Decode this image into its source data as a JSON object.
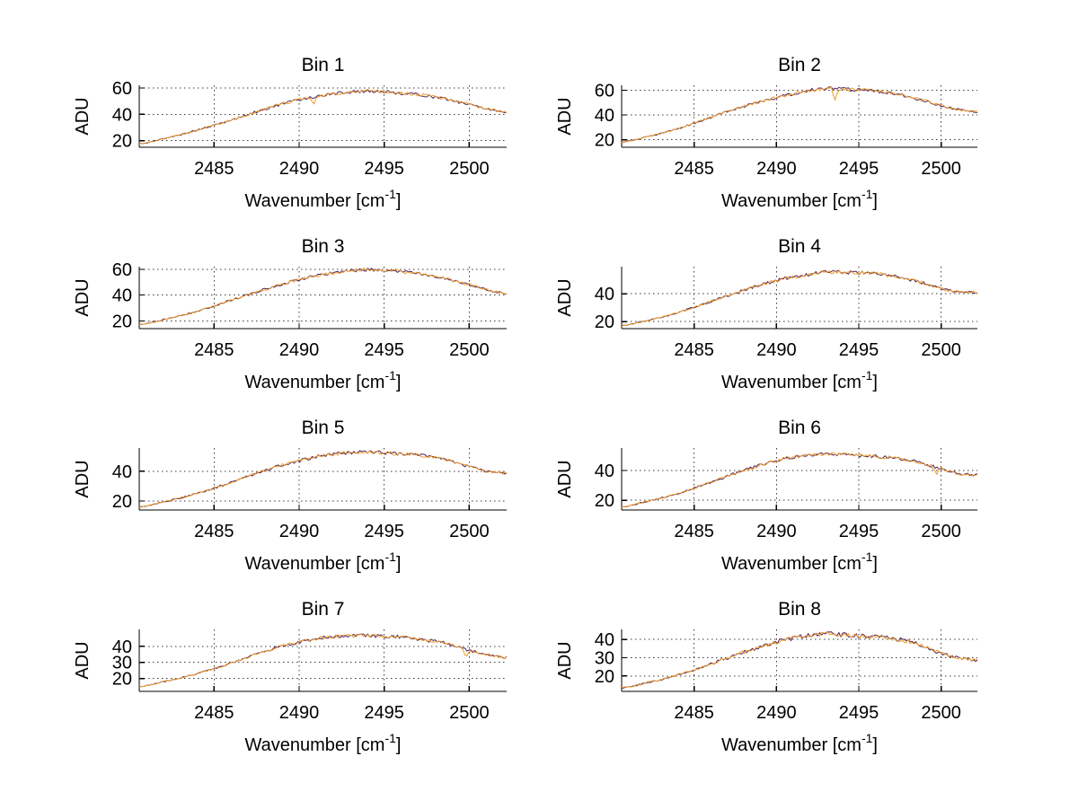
{
  "figure": {
    "background": "#ffffff",
    "ylabel": "ADU",
    "xlabel": {
      "pre": "Wavenumber [cm",
      "sup": "-1",
      "post": "]"
    },
    "x_ticks": [
      2485,
      2490,
      2495,
      2500
    ],
    "xlim": [
      2480.6,
      2502.2
    ],
    "grid": "on",
    "box": "off",
    "colors": {
      "axis": "#000000",
      "grid": "#3a3a3a",
      "trace_dark": "#4b2160",
      "trace_orange": "#ee9b28",
      "text": "#000000"
    }
  },
  "chart_data": [
    {
      "type": "line",
      "title": "Bin 1",
      "xlabel": "Wavenumber [cm-1]",
      "ylabel": "ADU",
      "xlim": [
        2480.6,
        2502.2
      ],
      "ylim": [
        15,
        62
      ],
      "y_ticks": [
        20,
        40,
        60
      ],
      "x": [
        2480.6,
        2482,
        2484,
        2486,
        2488,
        2490,
        2491.5,
        2493,
        2494.5,
        2496,
        2497,
        2498,
        2499,
        2500,
        2501,
        2502.2
      ],
      "values": [
        17.5,
        21.5,
        28,
        35.5,
        44,
        51,
        54.5,
        57,
        57.5,
        56,
        55,
        53,
        50.5,
        47.5,
        44.5,
        41.5
      ],
      "noise": 1.3,
      "spikes": [
        {
          "x": 2490.9,
          "dy": -5
        }
      ],
      "series": [
        {
          "name": "trace-dark",
          "color": "#4b2160"
        },
        {
          "name": "trace-orange",
          "color": "#ee9b28"
        }
      ]
    },
    {
      "type": "line",
      "title": "Bin 2",
      "xlabel": "Wavenumber [cm-1]",
      "ylabel": "ADU",
      "xlim": [
        2480.6,
        2502.2
      ],
      "ylim": [
        14,
        64
      ],
      "y_ticks": [
        20,
        40,
        60
      ],
      "x": [
        2480.6,
        2482,
        2484,
        2486,
        2488,
        2490,
        2491.5,
        2493,
        2494.5,
        2496,
        2497,
        2498,
        2499,
        2500,
        2501,
        2502.2
      ],
      "values": [
        18,
        22,
        29,
        38,
        47,
        54,
        58.5,
        61.5,
        60.5,
        59.5,
        57.5,
        55,
        51.5,
        47.5,
        44.5,
        42.5
      ],
      "noise": 1.4,
      "spikes": [
        {
          "x": 2493.6,
          "dy": -10
        }
      ],
      "series": [
        {
          "name": "trace-dark",
          "color": "#4b2160"
        },
        {
          "name": "trace-orange",
          "color": "#ee9b28"
        }
      ]
    },
    {
      "type": "line",
      "title": "Bin 3",
      "xlabel": "Wavenumber [cm-1]",
      "ylabel": "ADU",
      "xlim": [
        2480.6,
        2502.2
      ],
      "ylim": [
        14,
        62
      ],
      "y_ticks": [
        20,
        40,
        60
      ],
      "x": [
        2480.6,
        2482,
        2484,
        2486,
        2488,
        2490,
        2491.5,
        2493,
        2494.5,
        2496,
        2497,
        2498,
        2499,
        2500,
        2501,
        2502.2
      ],
      "values": [
        17,
        21,
        27.5,
        36,
        44.5,
        52,
        56,
        59,
        59.5,
        58,
        56.5,
        54.5,
        51.5,
        48,
        44.5,
        41
      ],
      "noise": 1.3,
      "spikes": [],
      "series": [
        {
          "name": "trace-dark",
          "color": "#4b2160"
        },
        {
          "name": "trace-orange",
          "color": "#ee9b28"
        }
      ]
    },
    {
      "type": "line",
      "title": "Bin 4",
      "xlabel": "Wavenumber [cm-1]",
      "ylabel": "ADU",
      "xlim": [
        2480.6,
        2502.2
      ],
      "ylim": [
        15,
        59.5
      ],
      "y_ticks": [
        20,
        40
      ],
      "x": [
        2480.6,
        2482,
        2484,
        2486,
        2488,
        2490,
        2491.5,
        2493,
        2494.5,
        2496,
        2497,
        2498,
        2499,
        2500,
        2501,
        2502.2
      ],
      "values": [
        17,
        20.5,
        26.5,
        34.5,
        42.5,
        49.5,
        53,
        55.5,
        55.5,
        54.5,
        53,
        50.5,
        47.5,
        44,
        41.5,
        41
      ],
      "noise": 1.3,
      "spikes": [],
      "series": [
        {
          "name": "trace-dark",
          "color": "#4b2160"
        },
        {
          "name": "trace-orange",
          "color": "#ee9b28"
        }
      ]
    },
    {
      "type": "line",
      "title": "Bin 5",
      "xlabel": "Wavenumber [cm-1]",
      "ylabel": "ADU",
      "xlim": [
        2480.6,
        2502.2
      ],
      "ylim": [
        14,
        55.5
      ],
      "y_ticks": [
        20,
        40
      ],
      "x": [
        2480.6,
        2482,
        2484,
        2486,
        2488,
        2490,
        2491.5,
        2493,
        2494.5,
        2496,
        2497,
        2498,
        2499,
        2500,
        2501,
        2502.2
      ],
      "values": [
        16,
        19.5,
        25,
        32.5,
        40.5,
        47,
        50.5,
        52.5,
        52.5,
        51.5,
        51,
        49,
        46.5,
        43,
        40,
        38.5
      ],
      "noise": 1.2,
      "spikes": [],
      "series": [
        {
          "name": "trace-dark",
          "color": "#4b2160"
        },
        {
          "name": "trace-orange",
          "color": "#ee9b28"
        }
      ]
    },
    {
      "type": "line",
      "title": "Bin 6",
      "xlabel": "Wavenumber [cm-1]",
      "ylabel": "ADU",
      "xlim": [
        2480.6,
        2502.2
      ],
      "ylim": [
        13.5,
        55
      ],
      "y_ticks": [
        20,
        40
      ],
      "x": [
        2480.6,
        2482,
        2484,
        2486,
        2488,
        2490,
        2491.5,
        2493,
        2494.5,
        2496,
        2497,
        2498,
        2499,
        2500,
        2501,
        2502.2
      ],
      "values": [
        15.5,
        19,
        24.5,
        32,
        40,
        46.5,
        49.5,
        51,
        50.5,
        49.5,
        48.5,
        47,
        44.5,
        41,
        38,
        37
      ],
      "noise": 1.2,
      "spikes": [
        {
          "x": 2499.7,
          "dy": -3.5
        }
      ],
      "series": [
        {
          "name": "trace-dark",
          "color": "#4b2160"
        },
        {
          "name": "trace-orange",
          "color": "#ee9b28"
        }
      ]
    },
    {
      "type": "line",
      "title": "Bin 7",
      "xlabel": "Wavenumber [cm-1]",
      "ylabel": "ADU",
      "xlim": [
        2480.6,
        2502.2
      ],
      "ylim": [
        12,
        50.5
      ],
      "y_ticks": [
        20,
        30,
        40
      ],
      "x": [
        2480.6,
        2482,
        2484,
        2486,
        2488,
        2490,
        2491.5,
        2493,
        2494.5,
        2496,
        2497,
        2498,
        2499,
        2500,
        2501,
        2502.2
      ],
      "values": [
        15,
        18,
        23,
        29.5,
        37,
        42.5,
        45.5,
        46.5,
        46.5,
        46,
        44.5,
        43,
        41,
        37.5,
        35,
        33
      ],
      "noise": 1.1,
      "spikes": [
        {
          "x": 2499.8,
          "dy": -3.5
        }
      ],
      "series": [
        {
          "name": "trace-dark",
          "color": "#4b2160"
        },
        {
          "name": "trace-orange",
          "color": "#ee9b28"
        }
      ]
    },
    {
      "type": "line",
      "title": "Bin 8",
      "xlabel": "Wavenumber [cm-1]",
      "ylabel": "ADU",
      "xlim": [
        2480.6,
        2502.2
      ],
      "ylim": [
        11.5,
        45.5
      ],
      "y_ticks": [
        20,
        30,
        40
      ],
      "x": [
        2480.6,
        2482,
        2484,
        2486,
        2488,
        2490,
        2491.5,
        2493,
        2494.5,
        2496,
        2497,
        2498,
        2499,
        2500,
        2501,
        2502.2
      ],
      "values": [
        13.5,
        16,
        20.5,
        26.5,
        33,
        38.5,
        41.5,
        43,
        42.5,
        41.5,
        40.5,
        39,
        36,
        32.5,
        30,
        28.5
      ],
      "noise": 1.3,
      "spikes": [],
      "series": [
        {
          "name": "trace-dark",
          "color": "#4b2160"
        },
        {
          "name": "trace-orange",
          "color": "#ee9b28"
        }
      ]
    }
  ]
}
